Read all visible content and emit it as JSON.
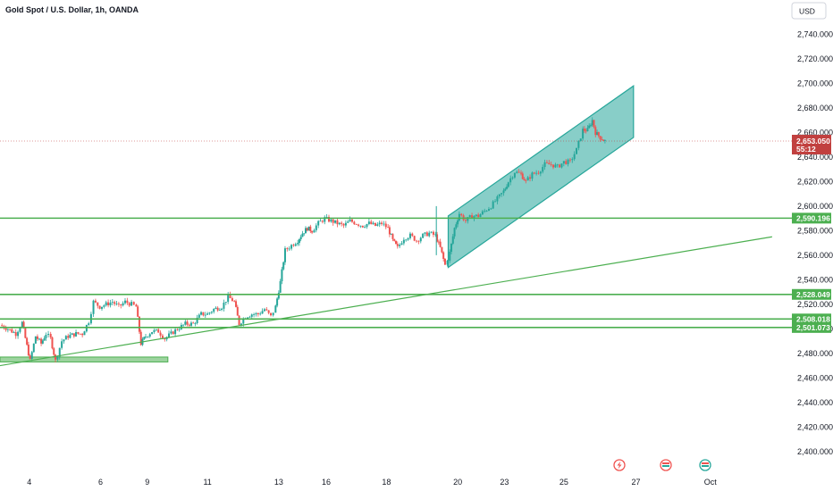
{
  "header": {
    "symbol_title": "Gold Spot / U.S. Dollar, 1h, OANDA",
    "currency_button": "USD"
  },
  "chart_data": {
    "type": "candlestick",
    "title": "Gold Spot / U.S. Dollar, 1h, OANDA",
    "ylim": [
      2394,
      2752
    ],
    "y_ticks": [
      "2,400.000",
      "2,420.000",
      "2,440.000",
      "2,460.000",
      "2,480.000",
      "2,500.000",
      "2,520.000",
      "2,540.000",
      "2,560.000",
      "2,580.000",
      "2,600.000",
      "2,620.000",
      "2,640.000",
      "2,660.000",
      "2,680.000",
      "2,700.000",
      "2,720.000",
      "2,740.000"
    ],
    "y_tick_values": [
      2400,
      2420,
      2440,
      2460,
      2480,
      2500,
      2520,
      2540,
      2560,
      2580,
      2600,
      2620,
      2640,
      2660,
      2680,
      2700,
      2720,
      2740
    ],
    "x_ticks": [
      {
        "label": "4",
        "t": 0.037
      },
      {
        "label": "6",
        "t": 0.127
      },
      {
        "label": "9",
        "t": 0.186
      },
      {
        "label": "11",
        "t": 0.262
      },
      {
        "label": "13",
        "t": 0.352
      },
      {
        "label": "16",
        "t": 0.412
      },
      {
        "label": "18",
        "t": 0.488
      },
      {
        "label": "20",
        "t": 0.578
      },
      {
        "label": "23",
        "t": 0.637
      },
      {
        "label": "25",
        "t": 0.712
      },
      {
        "label": "27",
        "t": 0.803
      },
      {
        "label": "Oct",
        "t": 0.897
      }
    ],
    "price_path": [
      [
        0.0,
        2503
      ],
      [
        0.01,
        2500
      ],
      [
        0.02,
        2496
      ],
      [
        0.028,
        2505
      ],
      [
        0.034,
        2486
      ],
      [
        0.038,
        2474
      ],
      [
        0.045,
        2494
      ],
      [
        0.052,
        2488
      ],
      [
        0.058,
        2496
      ],
      [
        0.064,
        2492
      ],
      [
        0.07,
        2474
      ],
      [
        0.078,
        2490
      ],
      [
        0.086,
        2494
      ],
      [
        0.096,
        2496
      ],
      [
        0.104,
        2496
      ],
      [
        0.112,
        2506
      ],
      [
        0.118,
        2522
      ],
      [
        0.126,
        2518
      ],
      [
        0.134,
        2520
      ],
      [
        0.142,
        2522
      ],
      [
        0.15,
        2518
      ],
      [
        0.158,
        2522
      ],
      [
        0.166,
        2520
      ],
      [
        0.172,
        2518
      ],
      [
        0.178,
        2488
      ],
      [
        0.184,
        2494
      ],
      [
        0.192,
        2498
      ],
      [
        0.2,
        2498
      ],
      [
        0.208,
        2492
      ],
      [
        0.216,
        2496
      ],
      [
        0.224,
        2500
      ],
      [
        0.234,
        2504
      ],
      [
        0.244,
        2504
      ],
      [
        0.254,
        2512
      ],
      [
        0.262,
        2512
      ],
      [
        0.27,
        2516
      ],
      [
        0.28,
        2518
      ],
      [
        0.288,
        2526
      ],
      [
        0.296,
        2522
      ],
      [
        0.302,
        2504
      ],
      [
        0.31,
        2510
      ],
      [
        0.318,
        2512
      ],
      [
        0.326,
        2512
      ],
      [
        0.334,
        2516
      ],
      [
        0.342,
        2510
      ],
      [
        0.348,
        2518
      ],
      [
        0.354,
        2538
      ],
      [
        0.36,
        2564
      ],
      [
        0.368,
        2568
      ],
      [
        0.376,
        2572
      ],
      [
        0.382,
        2578
      ],
      [
        0.388,
        2582
      ],
      [
        0.394,
        2580
      ],
      [
        0.402,
        2586
      ],
      [
        0.41,
        2590
      ],
      [
        0.418,
        2588
      ],
      [
        0.426,
        2586
      ],
      [
        0.434,
        2584
      ],
      [
        0.442,
        2588
      ],
      [
        0.45,
        2586
      ],
      [
        0.458,
        2584
      ],
      [
        0.466,
        2586
      ],
      [
        0.474,
        2584
      ],
      [
        0.482,
        2586
      ],
      [
        0.49,
        2582
      ],
      [
        0.496,
        2572
      ],
      [
        0.502,
        2566
      ],
      [
        0.51,
        2574
      ],
      [
        0.518,
        2576
      ],
      [
        0.526,
        2572
      ],
      [
        0.534,
        2576
      ],
      [
        0.542,
        2578
      ],
      [
        0.55,
        2576
      ],
      [
        0.556,
        2566
      ],
      [
        0.562,
        2552
      ],
      [
        0.568,
        2562
      ],
      [
        0.574,
        2582
      ],
      [
        0.58,
        2594
      ],
      [
        0.588,
        2588
      ],
      [
        0.596,
        2592
      ],
      [
        0.604,
        2592
      ],
      [
        0.612,
        2596
      ],
      [
        0.62,
        2600
      ],
      [
        0.628,
        2606
      ],
      [
        0.636,
        2612
      ],
      [
        0.642,
        2620
      ],
      [
        0.65,
        2628
      ],
      [
        0.658,
        2626
      ],
      [
        0.664,
        2620
      ],
      [
        0.672,
        2626
      ],
      [
        0.68,
        2628
      ],
      [
        0.688,
        2634
      ],
      [
        0.696,
        2634
      ],
      [
        0.704,
        2632
      ],
      [
        0.712,
        2636
      ],
      [
        0.72,
        2636
      ],
      [
        0.728,
        2646
      ],
      [
        0.736,
        2662
      ],
      [
        0.742,
        2662
      ],
      [
        0.748,
        2670
      ],
      [
        0.752,
        2660
      ],
      [
        0.758,
        2656
      ],
      [
        0.764,
        2653
      ]
    ],
    "last_price": {
      "value": 2653.05,
      "label": "2,653.050",
      "countdown": "55:12"
    },
    "horizontal_levels": [
      {
        "value": 2590.196,
        "label": "2,590.196"
      },
      {
        "value": 2528.049,
        "label": "2,528.049"
      },
      {
        "value": 2508.018,
        "label": "2,508.018"
      },
      {
        "value": 2501.073,
        "label": "2,501.073"
      }
    ],
    "trendline": {
      "start": [
        0.0,
        2470
      ],
      "end": [
        0.975,
        2575
      ]
    },
    "channel": {
      "upper_start": [
        0.566,
        2592
      ],
      "upper_end": [
        0.8,
        2698
      ],
      "lower_start": [
        0.566,
        2550
      ],
      "lower_end": [
        0.8,
        2656
      ]
    },
    "support_zone": {
      "x_start": 0.0,
      "x_end": 0.212,
      "top": 2477,
      "bottom": 2473
    },
    "spike": {
      "t": 0.551,
      "high": 2600
    }
  },
  "colors": {
    "up": "#26a69a",
    "down": "#ef5350",
    "level_line": "#4caf50",
    "channel_fill": "#26a69a",
    "price_tag": "#c1403f"
  }
}
